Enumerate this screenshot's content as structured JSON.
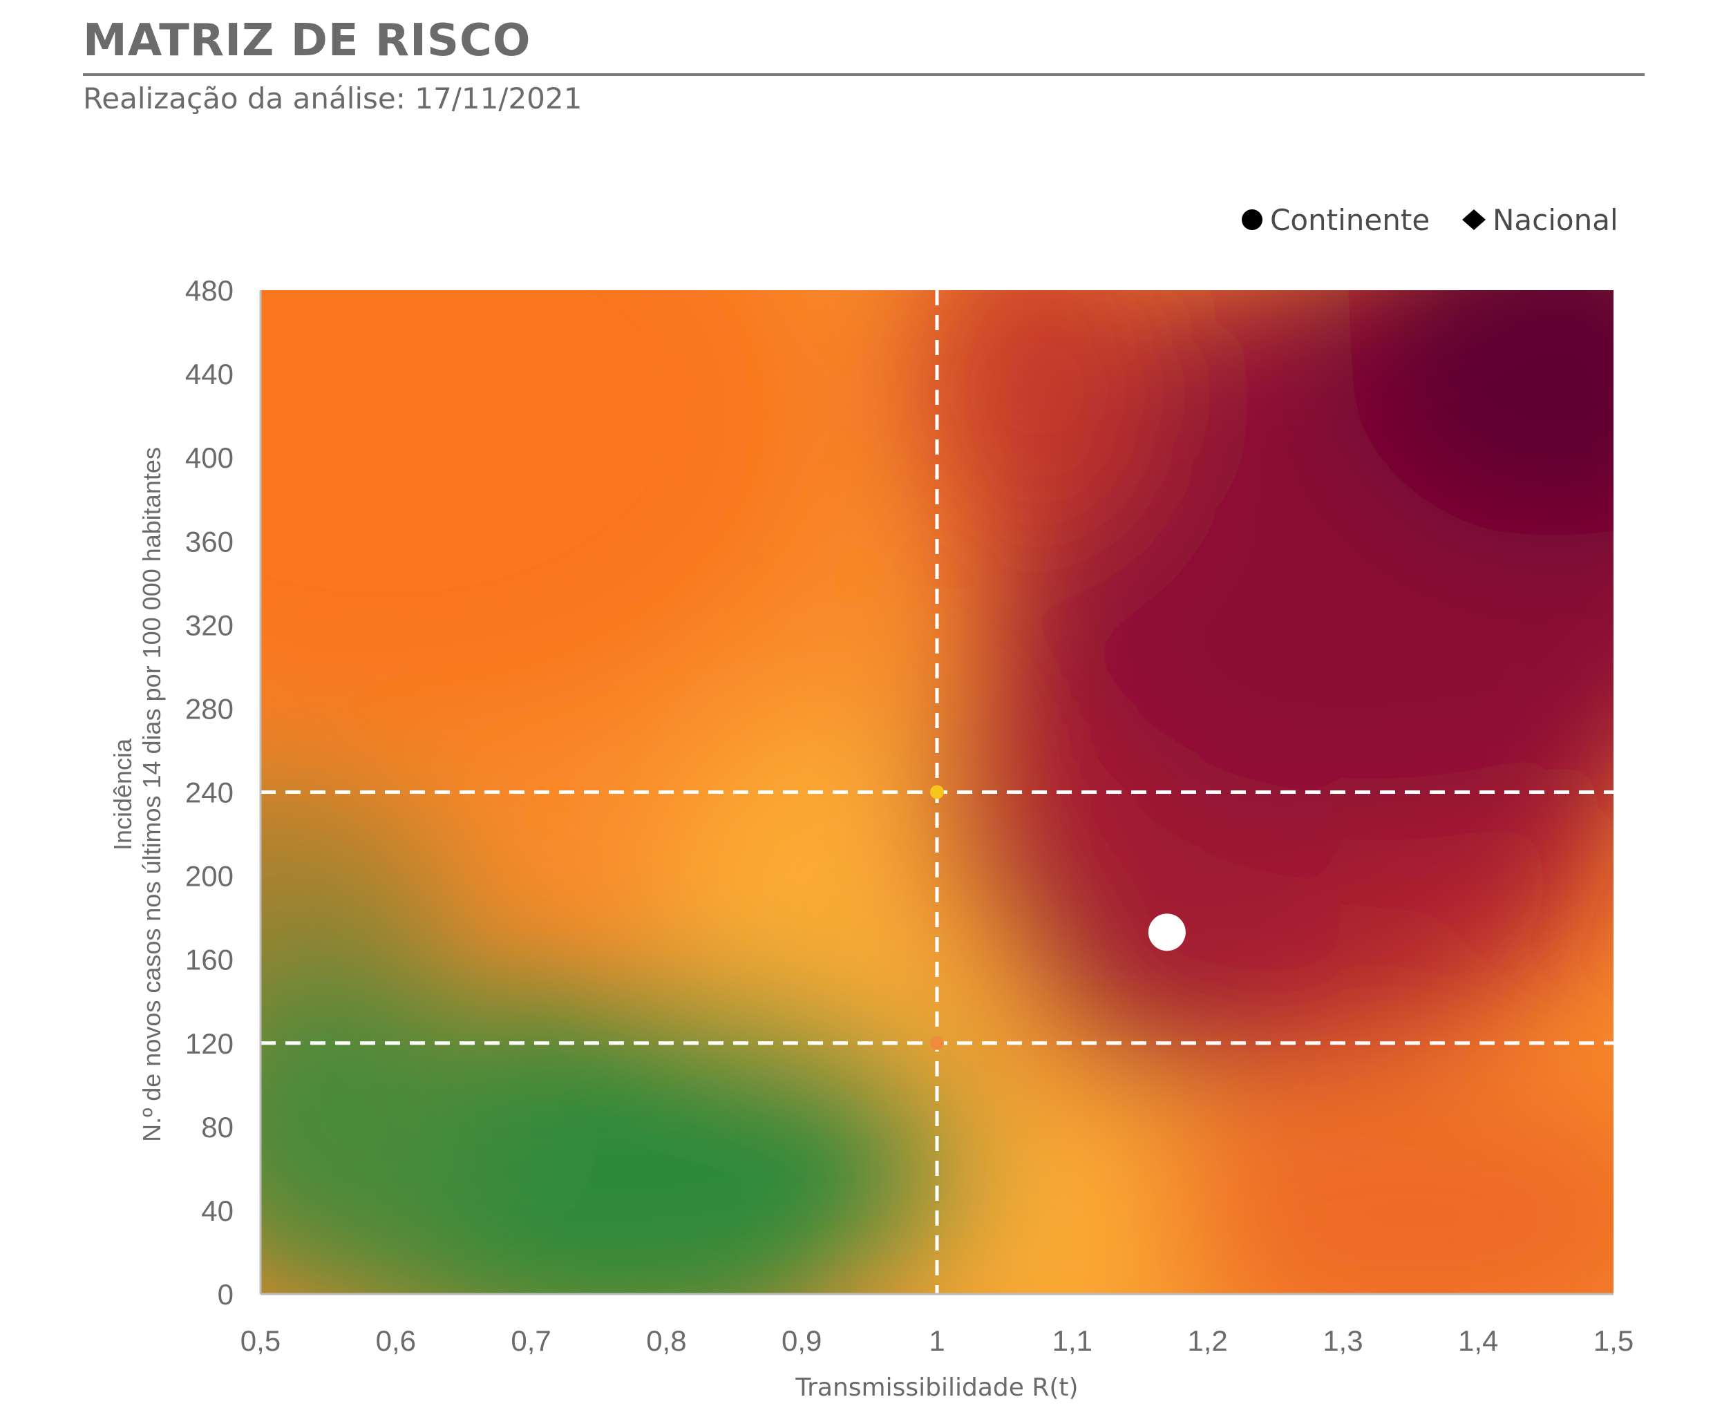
{
  "header": {
    "title": "MATRIZ DE RISCO",
    "subtitle": "Realização da análise: 17/11/2021"
  },
  "chart_data": {
    "type": "scatter",
    "x_ticks": [
      "0,5",
      "0,6",
      "0,7",
      "0,8",
      "0,9",
      "1",
      "1,1",
      "1,2",
      "1,3",
      "1,4",
      "1,5"
    ],
    "y_ticks": [
      "0",
      "40",
      "80",
      "120",
      "160",
      "200",
      "240",
      "280",
      "320",
      "360",
      "400",
      "440",
      "480"
    ],
    "xlabel": "Transmissibilidade R(t)",
    "ylabel_line1": "Incidência",
    "ylabel_line2": "N.º de novos casos nos últimos 14 dias por 100 000 habitantes",
    "xlim": [
      0.5,
      1.5
    ],
    "ylim": [
      0,
      480
    ],
    "thresholds": {
      "x": [
        1.0
      ],
      "y": [
        120,
        240
      ]
    },
    "threshold_markers": [
      {
        "x": 1.0,
        "y": 240,
        "color": "#f7c51e"
      },
      {
        "x": 1.0,
        "y": 120,
        "color": "#f08a3c"
      }
    ],
    "legend": [
      {
        "name": "Continente",
        "marker": "circle"
      },
      {
        "name": "Nacional",
        "marker": "diamond"
      }
    ],
    "legend_position": "top-right",
    "series": [
      {
        "name": "Continente",
        "marker": "circle",
        "color": "#ffffff",
        "points": [
          {
            "x": 1.17,
            "y": 173
          }
        ]
      },
      {
        "name": "Nacional",
        "marker": "diamond",
        "color": "#ffffff",
        "points": [
          {
            "x": 1.17,
            "y": 175
          }
        ]
      }
    ],
    "background": "risk-gradient",
    "colors": {
      "green": "#2f8a3a",
      "yellow": "#fbab35",
      "orange": "#f9761e",
      "red": "#b3222e",
      "dark": "#5e0030"
    }
  }
}
